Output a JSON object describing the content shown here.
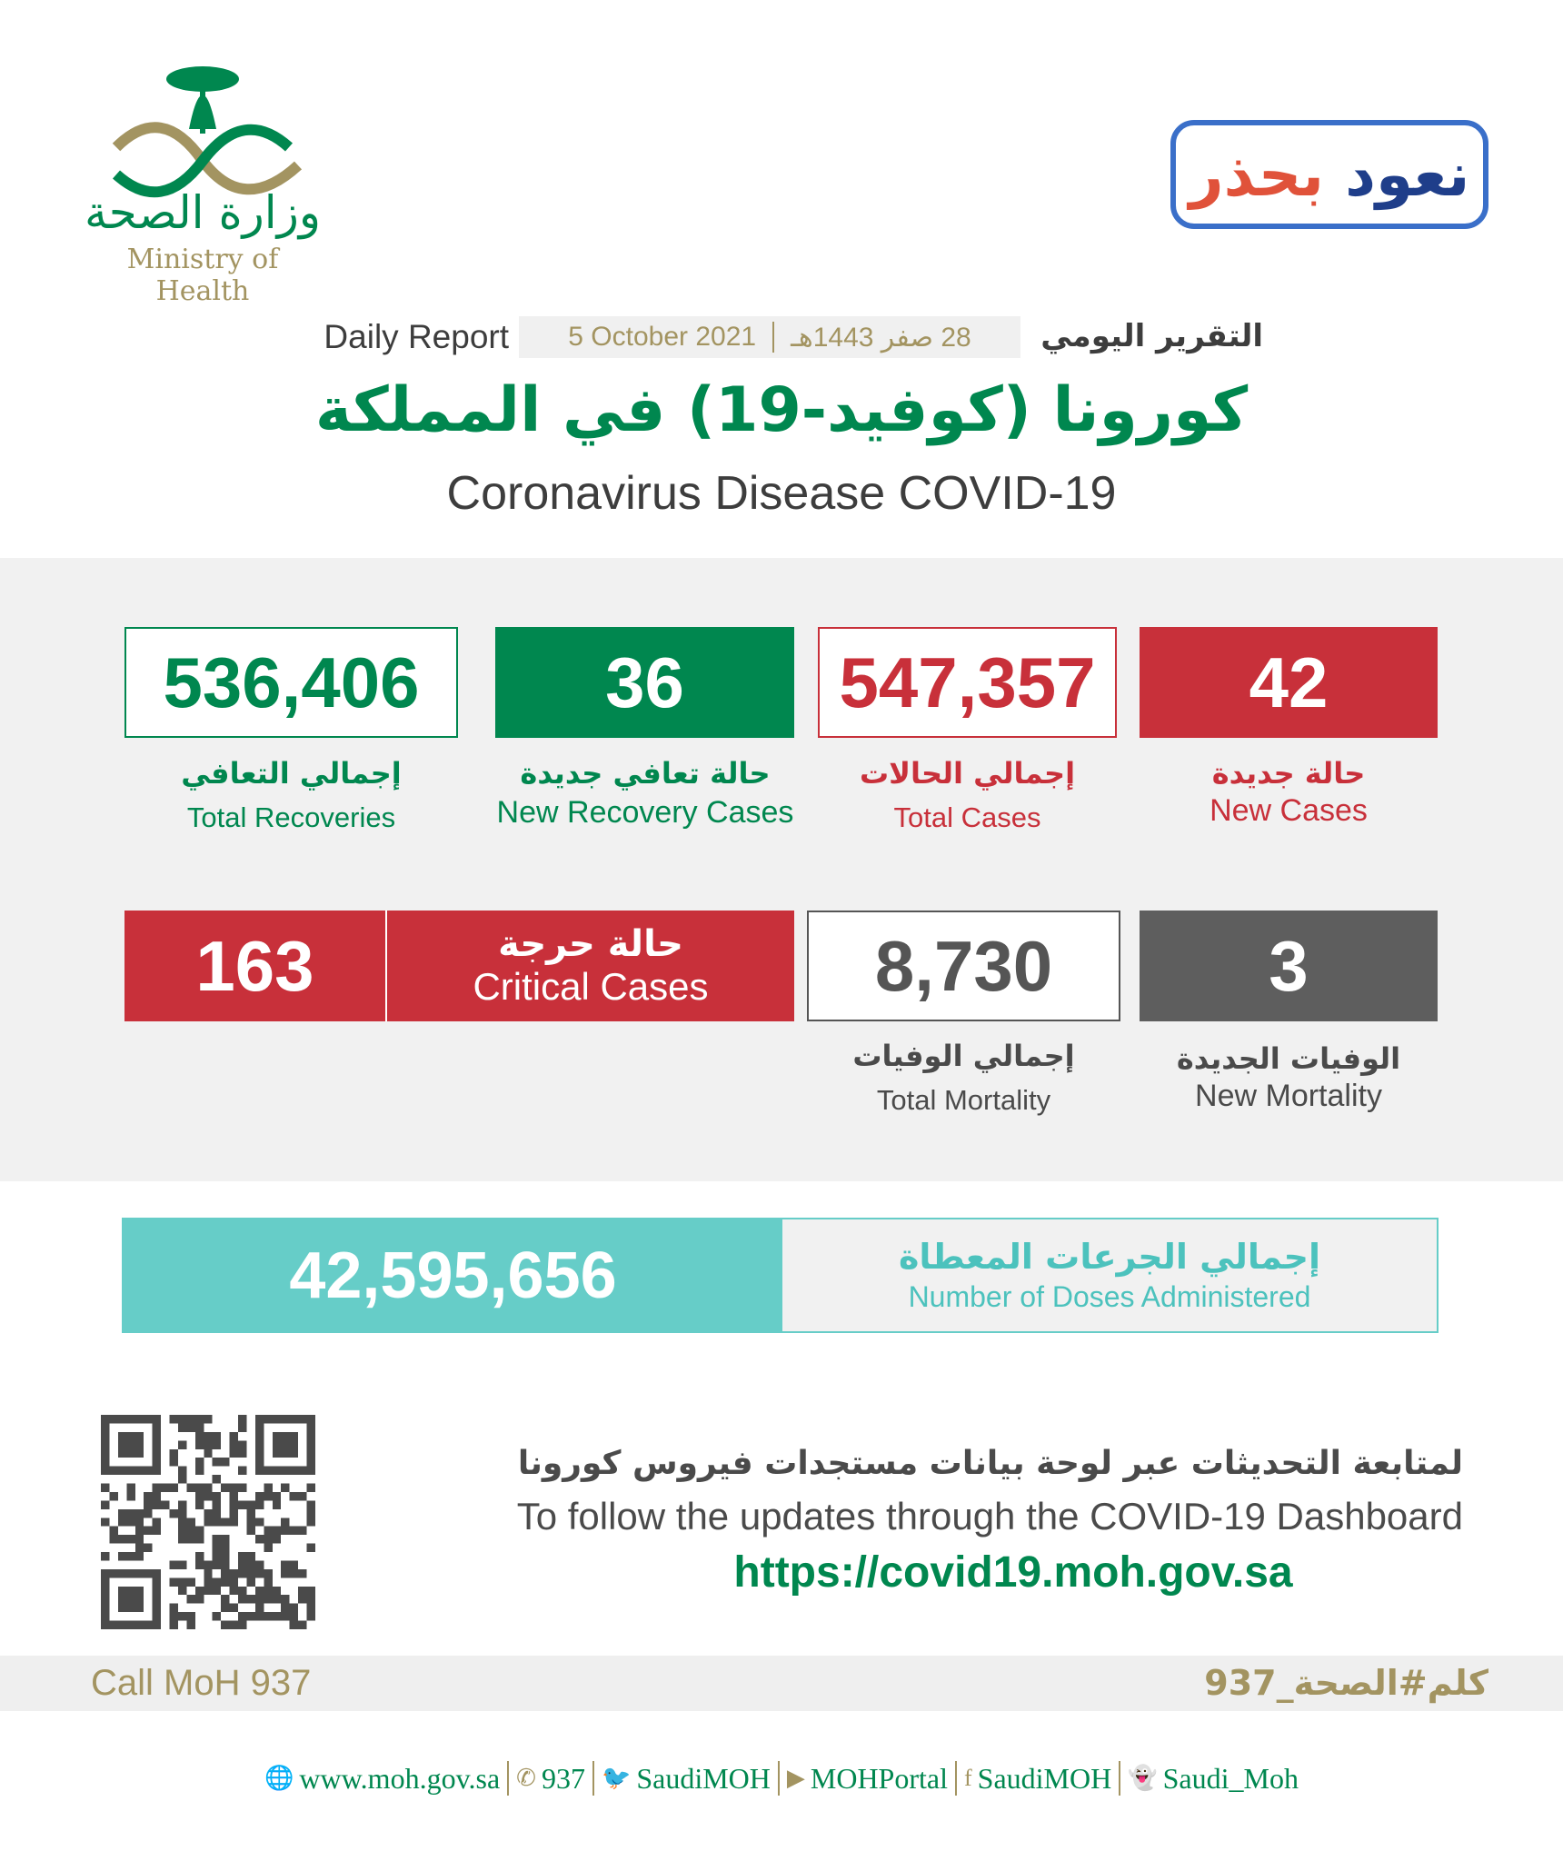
{
  "header": {
    "logo_ar": "وزارة الصحة",
    "logo_en": "Ministry of Health",
    "campaign_ar_1": "نعود",
    "campaign_ar_2": "بحذر",
    "daily_report_en": "Daily Report",
    "date_gregorian": "5 October 2021",
    "date_hijri": "28 صفر 1443هـ",
    "daily_report_ar": "التقرير اليومي",
    "title_ar": "كورونا (كوفيد-19) في المملكة",
    "title_en": "Coronavirus Disease COVID-19"
  },
  "stats": {
    "total_recoveries": {
      "value": "536,406",
      "ar": "إجمالي التعافي",
      "en": "Total Recoveries"
    },
    "new_recoveries": {
      "value": "36",
      "ar": "حالة تعافي جديدة",
      "en": "New Recovery Cases"
    },
    "total_cases": {
      "value": "547,357",
      "ar": "إجمالي الحالات",
      "en": "Total Cases"
    },
    "new_cases": {
      "value": "42",
      "ar": "حالة جديدة",
      "en": "New Cases"
    },
    "critical": {
      "value": "163",
      "ar": "حالة حرجة",
      "en": "Critical Cases"
    },
    "total_mortality": {
      "value": "8,730",
      "ar": "إجمالي الوفيات",
      "en": "Total Mortality"
    },
    "new_mortality": {
      "value": "3",
      "ar": "الوفيات الجديدة",
      "en": "New Mortality"
    }
  },
  "doses": {
    "value": "42,595,656",
    "ar": "إجمالي الجرعات المعطاة",
    "en": "Number of Doses Administered"
  },
  "dashboard": {
    "ar": "لمتابعة التحديثات عبر لوحة بيانات مستجدات فيروس كورونا",
    "en": "To follow the updates through the COVID-19 Dashboard",
    "url": "https://covid19.moh.gov.sa"
  },
  "call": {
    "en": "Call MoH 937",
    "ar": "كلم#الصحة_937"
  },
  "footer": [
    {
      "icon": "globe-icon",
      "glyph": "🌐",
      "label": "www.moh.gov.sa"
    },
    {
      "icon": "phone-icon",
      "glyph": "✆",
      "label": "937"
    },
    {
      "icon": "twitter-icon",
      "glyph": "🐦",
      "label": "SaudiMOH"
    },
    {
      "icon": "youtube-icon",
      "glyph": "▶",
      "label": "MOHPortal"
    },
    {
      "icon": "facebook-icon",
      "glyph": "f",
      "label": "SaudiMOH"
    },
    {
      "icon": "snapchat-icon",
      "glyph": "👻",
      "label": "Saudi_Moh"
    }
  ],
  "colors": {
    "green": "#00874f",
    "red": "#c8303a",
    "gray": "#5e5e5e",
    "teal": "#66cdc8",
    "gold": "#a39461"
  }
}
